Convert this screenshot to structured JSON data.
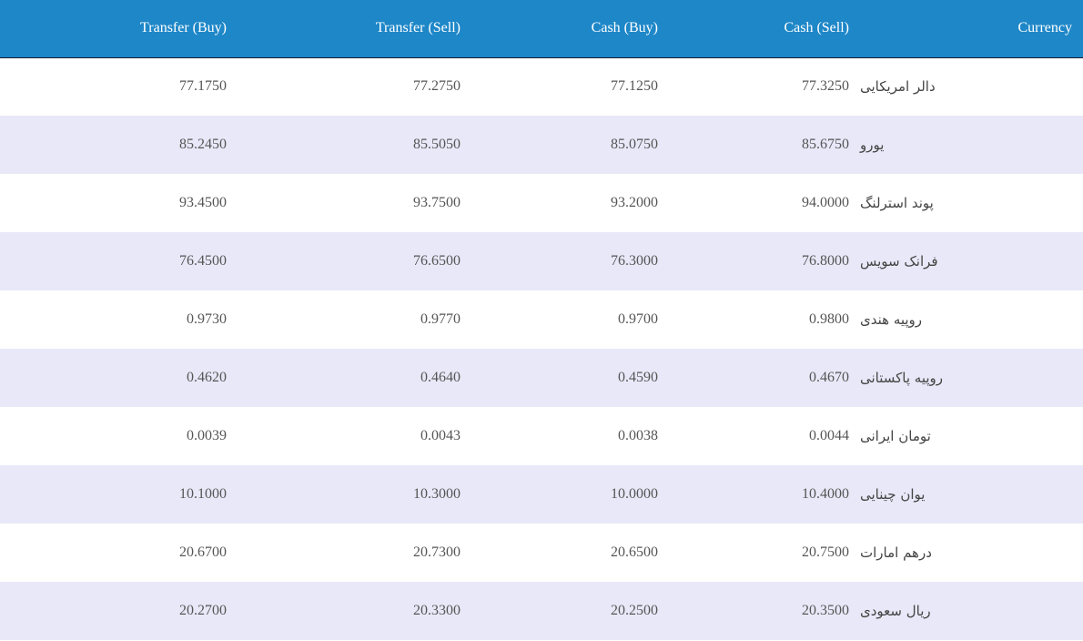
{
  "header": {
    "transfer_buy": "Transfer (Buy)",
    "transfer_sell": "Transfer (Sell)",
    "cash_buy": "Cash (Buy)",
    "cash_sell": "Cash (Sell)",
    "currency": "Currency"
  },
  "colors": {
    "header_bg": "#1e87c8",
    "stripe_bg": "#e8e8f8"
  },
  "rows": [
    {
      "transfer_buy": "77.1750",
      "transfer_sell": "77.2750",
      "cash_buy": "77.1250",
      "cash_sell": "77.3250",
      "currency": "دالر امریکایی"
    },
    {
      "transfer_buy": "85.2450",
      "transfer_sell": "85.5050",
      "cash_buy": "85.0750",
      "cash_sell": "85.6750",
      "currency": "یورو"
    },
    {
      "transfer_buy": "93.4500",
      "transfer_sell": "93.7500",
      "cash_buy": "93.2000",
      "cash_sell": "94.0000",
      "currency": "پوند استرلنگ"
    },
    {
      "transfer_buy": "76.4500",
      "transfer_sell": "76.6500",
      "cash_buy": "76.3000",
      "cash_sell": "76.8000",
      "currency": "فرانک سویس"
    },
    {
      "transfer_buy": "0.9730",
      "transfer_sell": "0.9770",
      "cash_buy": "0.9700",
      "cash_sell": "0.9800",
      "currency": "روپیه هندی"
    },
    {
      "transfer_buy": "0.4620",
      "transfer_sell": "0.4640",
      "cash_buy": "0.4590",
      "cash_sell": "0.4670",
      "currency": "روپیه پاکستانی"
    },
    {
      "transfer_buy": "0.0039",
      "transfer_sell": "0.0043",
      "cash_buy": "0.0038",
      "cash_sell": "0.0044",
      "currency": "تومان ایرانی"
    },
    {
      "transfer_buy": "10.1000",
      "transfer_sell": "10.3000",
      "cash_buy": "10.0000",
      "cash_sell": "10.4000",
      "currency": "یوان چینایی"
    },
    {
      "transfer_buy": "20.6700",
      "transfer_sell": "20.7300",
      "cash_buy": "20.6500",
      "cash_sell": "20.7500",
      "currency": "درهم امارات"
    },
    {
      "transfer_buy": "20.2700",
      "transfer_sell": "20.3300",
      "cash_buy": "20.2500",
      "cash_sell": "20.3500",
      "currency": "ریال سعودی"
    }
  ]
}
